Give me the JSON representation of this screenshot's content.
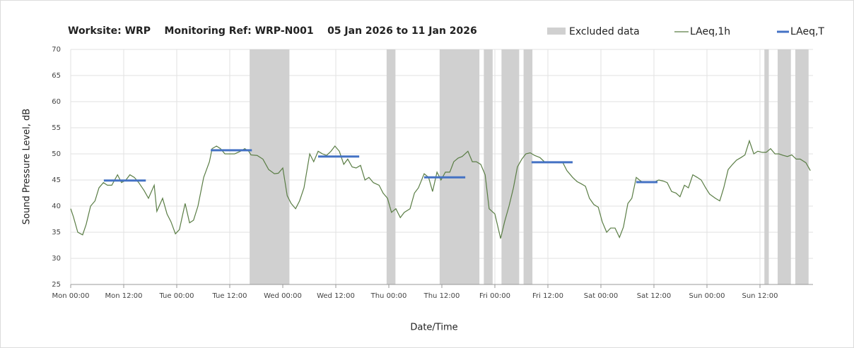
{
  "chart_data": {
    "type": "line",
    "title": "Worksite: WRP    Monitoring Ref: WRP-N001    05 Jan 2026 to 11 Jan 2026",
    "x_label": "Date/Time",
    "y_label": "Sound Pressure Level, dB",
    "xlim": [
      0,
      168
    ],
    "xticks": [
      {
        "value": 0,
        "label": "Mon 00:00"
      },
      {
        "value": 12,
        "label": "Mon 12:00"
      },
      {
        "value": 24,
        "label": "Tue 00:00"
      },
      {
        "value": 36,
        "label": "Tue 12:00"
      },
      {
        "value": 48,
        "label": "Wed 00:00"
      },
      {
        "value": 60,
        "label": "Wed 12:00"
      },
      {
        "value": 72,
        "label": "Thu 00:00"
      },
      {
        "value": 84,
        "label": "Thu 12:00"
      },
      {
        "value": 96,
        "label": "Fri 00:00"
      },
      {
        "value": 108,
        "label": "Fri 12:00"
      },
      {
        "value": 120,
        "label": "Sat 00:00"
      },
      {
        "value": 132,
        "label": "Sat 12:00"
      },
      {
        "value": 144,
        "label": "Sun 00:00"
      },
      {
        "value": 156,
        "label": "Sun 12:00"
      }
    ],
    "ylim": [
      25,
      70
    ],
    "yticks": [
      25,
      30,
      35,
      40,
      45,
      50,
      55,
      60,
      65,
      70
    ],
    "grid": true,
    "excluded": {
      "name": "Excluded data",
      "color": "#d0d0d0",
      "ranges": [
        [
          40.5,
          49.5
        ],
        [
          71.5,
          73.5
        ],
        [
          83.5,
          92.5
        ],
        [
          93.5,
          95.5
        ],
        [
          97.5,
          101.5
        ],
        [
          102.5,
          104.5
        ],
        [
          157,
          158
        ],
        [
          160,
          163
        ],
        [
          164,
          167
        ]
      ]
    },
    "series": [
      {
        "name": "LAeq,1h",
        "color": "#5a7d45",
        "x": [
          0,
          0.6,
          1.6,
          2.7,
          3.5,
          4.5,
          5.5,
          6.4,
          7.4,
          8.3,
          9.3,
          10.6,
          11.5,
          12.5,
          13.4,
          14.4,
          15.4,
          16.6,
          17.6,
          18.9,
          19.5,
          20.8,
          21.8,
          22.7,
          23.7,
          24.6,
          25.9,
          26.9,
          27.8,
          28.8,
          30.1,
          31.4,
          32,
          33,
          33.9,
          34.9,
          36.2,
          37.1,
          38.4,
          39.4,
          40.3,
          40.8,
          42.2,
          43.5,
          44.8,
          46.1,
          47,
          48,
          49,
          49.9,
          50.9,
          51.8,
          52.8,
          54.1,
          55,
          56,
          57,
          57.9,
          58.9,
          59.8,
          60.8,
          61.8,
          62.7,
          63.7,
          64.6,
          65.6,
          66.6,
          67.5,
          68.5,
          69.8,
          70.7,
          71.7,
          72.6,
          73.6,
          74.6,
          75.5,
          76.8,
          77.8,
          78.7,
          80,
          81,
          81.9,
          82.9,
          83.8,
          84.8,
          85.8,
          86.7,
          87.7,
          88.6,
          89.9,
          90.9,
          91.8,
          92.8,
          93.8,
          94.7,
          96,
          97.3,
          98.2,
          99.2,
          100.2,
          101.1,
          102.1,
          103,
          104,
          105,
          106.2,
          107.2,
          108.2,
          109.4,
          110.4,
          111.4,
          112.3,
          113.6,
          114.6,
          115.5,
          116.5,
          117.4,
          118.4,
          119.4,
          120.3,
          121.3,
          122.2,
          123.2,
          124.2,
          125.1,
          126.1,
          127,
          128,
          129,
          129.9,
          130.9,
          131.8,
          133.1,
          134.1,
          135,
          136,
          137,
          137.9,
          138.9,
          139.8,
          140.8,
          141.8,
          142.7,
          143.7,
          144.6,
          145.9,
          146.9,
          147.8,
          148.8,
          149.8,
          150.7,
          151.7,
          152.6,
          153.6,
          154.6,
          155.5,
          156.5,
          157.4,
          158.4,
          159.4,
          160.3,
          161.3,
          162.2,
          163.2,
          164.2,
          165.1,
          166.4,
          167.4
        ],
        "values": [
          39.5,
          38,
          35,
          34.5,
          36.5,
          40,
          41,
          43.5,
          44.5,
          44,
          44,
          46,
          44.5,
          45,
          46,
          45.5,
          44.5,
          43,
          41.5,
          44,
          39,
          41.5,
          38.5,
          37,
          34.7,
          35.5,
          40.5,
          36.8,
          37.3,
          40,
          45.5,
          48.5,
          51,
          51.5,
          51,
          50,
          50,
          50,
          50.5,
          51,
          50.5,
          49.8,
          49.7,
          49,
          47,
          46.2,
          46.3,
          47.3,
          42,
          40.5,
          39.5,
          41,
          43.5,
          50,
          48.5,
          50.5,
          50,
          49.7,
          50.5,
          51.5,
          50.5,
          48,
          49,
          47.5,
          47.3,
          47.8,
          45,
          45.5,
          44.5,
          44,
          42.5,
          41.5,
          38.8,
          39.5,
          37.8,
          38.8,
          39.5,
          42.5,
          43.5,
          46.2,
          45.5,
          42.8,
          46.5,
          45,
          46.5,
          46.5,
          48.5,
          49.2,
          49.5,
          50.5,
          48.5,
          48.5,
          48,
          46,
          39.5,
          38.5,
          33.8,
          37,
          40,
          43.5,
          47.5,
          49,
          50,
          50.2,
          49.7,
          49.3,
          48.5,
          48.5,
          48.5,
          48.3,
          48.3,
          46.8,
          45.5,
          44.7,
          44.3,
          43.8,
          41.5,
          40.3,
          39.8,
          37,
          35,
          35.8,
          35.8,
          34,
          36,
          40.5,
          41.5,
          45.5,
          44.8,
          44.5,
          44.5,
          44.5,
          45,
          44.8,
          44.5,
          42.8,
          42.5,
          41.8,
          44,
          43.5,
          46,
          45.5,
          45,
          43.5,
          42.3,
          41.5,
          41,
          43.5,
          47,
          48,
          48.8,
          49.3,
          49.8,
          52.5,
          50,
          50.5,
          50.3,
          50.3,
          51,
          50,
          50,
          49.7,
          49.5,
          49.8,
          49,
          49,
          48.3,
          46.8
        ]
      }
    ],
    "levels": {
      "name": "LAeq,T",
      "color": "#4472c4",
      "segments": [
        {
          "x": [
            7.5,
            17
          ],
          "value": 44.9
        },
        {
          "x": [
            31.7,
            41
          ],
          "value": 50.7
        },
        {
          "x": [
            56,
            65.3
          ],
          "value": 49.5
        },
        {
          "x": [
            80,
            89.3
          ],
          "value": 45.5
        },
        {
          "x": [
            104.3,
            113.6
          ],
          "value": 48.4
        },
        {
          "x": [
            128,
            132.8
          ],
          "value": 44.6
        }
      ]
    }
  }
}
